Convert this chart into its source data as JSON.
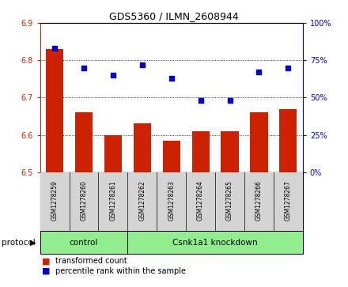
{
  "title": "GDS5360 / ILMN_2608944",
  "samples": [
    "GSM1278259",
    "GSM1278260",
    "GSM1278261",
    "GSM1278262",
    "GSM1278263",
    "GSM1278264",
    "GSM1278265",
    "GSM1278266",
    "GSM1278267"
  ],
  "bar_values": [
    6.83,
    6.66,
    6.6,
    6.63,
    6.585,
    6.61,
    6.61,
    6.66,
    6.67
  ],
  "dot_values": [
    83,
    70,
    65,
    72,
    63,
    48,
    48,
    67,
    70
  ],
  "bar_color": "#cc2200",
  "dot_color": "#0000cc",
  "ylim_left": [
    6.5,
    6.9
  ],
  "ylim_right": [
    0,
    100
  ],
  "yticks_left": [
    6.5,
    6.6,
    6.7,
    6.8,
    6.9
  ],
  "yticks_right": [
    0,
    25,
    50,
    75,
    100
  ],
  "grid_values": [
    6.6,
    6.7,
    6.8
  ],
  "control_count": 3,
  "knockdown_count": 6,
  "control_label": "control",
  "knockdown_label": "Csnk1a1 knockdown",
  "protocol_label": "protocol",
  "legend_bar": "transformed count",
  "legend_dot": "percentile rank within the sample",
  "bar_width": 0.6,
  "bg_plot": "#ffffff",
  "bg_tick": "#d4d4d4",
  "bg_control": "#90ee90",
  "bg_knockdown": "#90ee90",
  "right_tick_color": "#0000cc",
  "left_tick_color": "#cc2200",
  "title_fontsize": 9,
  "tick_fontsize": 7,
  "sample_fontsize": 5.5,
  "proto_fontsize": 7.5,
  "legend_fontsize": 7
}
